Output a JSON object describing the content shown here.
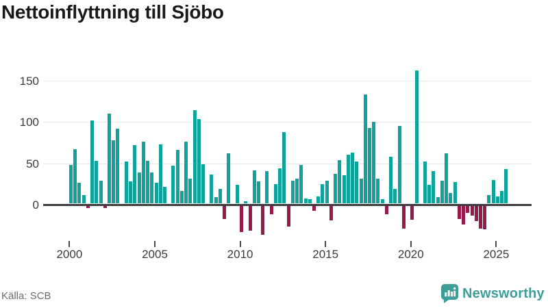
{
  "title": "Nettoinflyttning till Sjöbo",
  "source": "Källa: SCB",
  "brand": "Newsworthy",
  "colors": {
    "positive_bar": "#0fa39c",
    "negative_bar": "#981a4d",
    "baseline": "#3d3d3d",
    "gridline": "#e8e8e8",
    "brand_teal": "#3d9d99"
  },
  "chart_data": {
    "type": "bar",
    "title": "Nettoinflyttning till Sjöbo",
    "frequency": "quarterly",
    "start_year": 2000,
    "start_quarter": 1,
    "y_ticks": [
      0,
      50,
      100,
      150
    ],
    "x_tick_years": [
      2000,
      2005,
      2010,
      2015,
      2020,
      2025
    ],
    "ylim": [
      -45,
      170
    ],
    "grid": true,
    "series": [
      {
        "name": "Nettoinflyttning",
        "values": [
          47,
          66,
          25,
          10,
          -3,
          101,
          52,
          28,
          -3,
          109,
          77,
          91,
          0,
          51,
          27,
          71,
          38,
          75,
          52,
          38,
          25,
          72,
          20,
          0,
          46,
          65,
          15,
          75,
          30,
          113,
          102,
          48,
          0,
          35,
          8,
          18,
          -16,
          61,
          0,
          23,
          -32,
          3,
          -30,
          40,
          27,
          -35,
          39,
          -10,
          24,
          43,
          87,
          -25,
          28,
          30,
          47,
          6,
          5,
          -6,
          9,
          24,
          28,
          -18,
          36,
          53,
          34,
          59,
          62,
          51,
          30,
          132,
          92,
          99,
          30,
          5,
          -10,
          57,
          18,
          94,
          -28,
          0,
          -17,
          161,
          0,
          51,
          23,
          39,
          8,
          28,
          61,
          13,
          26,
          -16,
          -23,
          -9,
          -12,
          -19,
          -28,
          -29,
          10,
          29,
          9,
          15,
          42
        ]
      }
    ]
  }
}
